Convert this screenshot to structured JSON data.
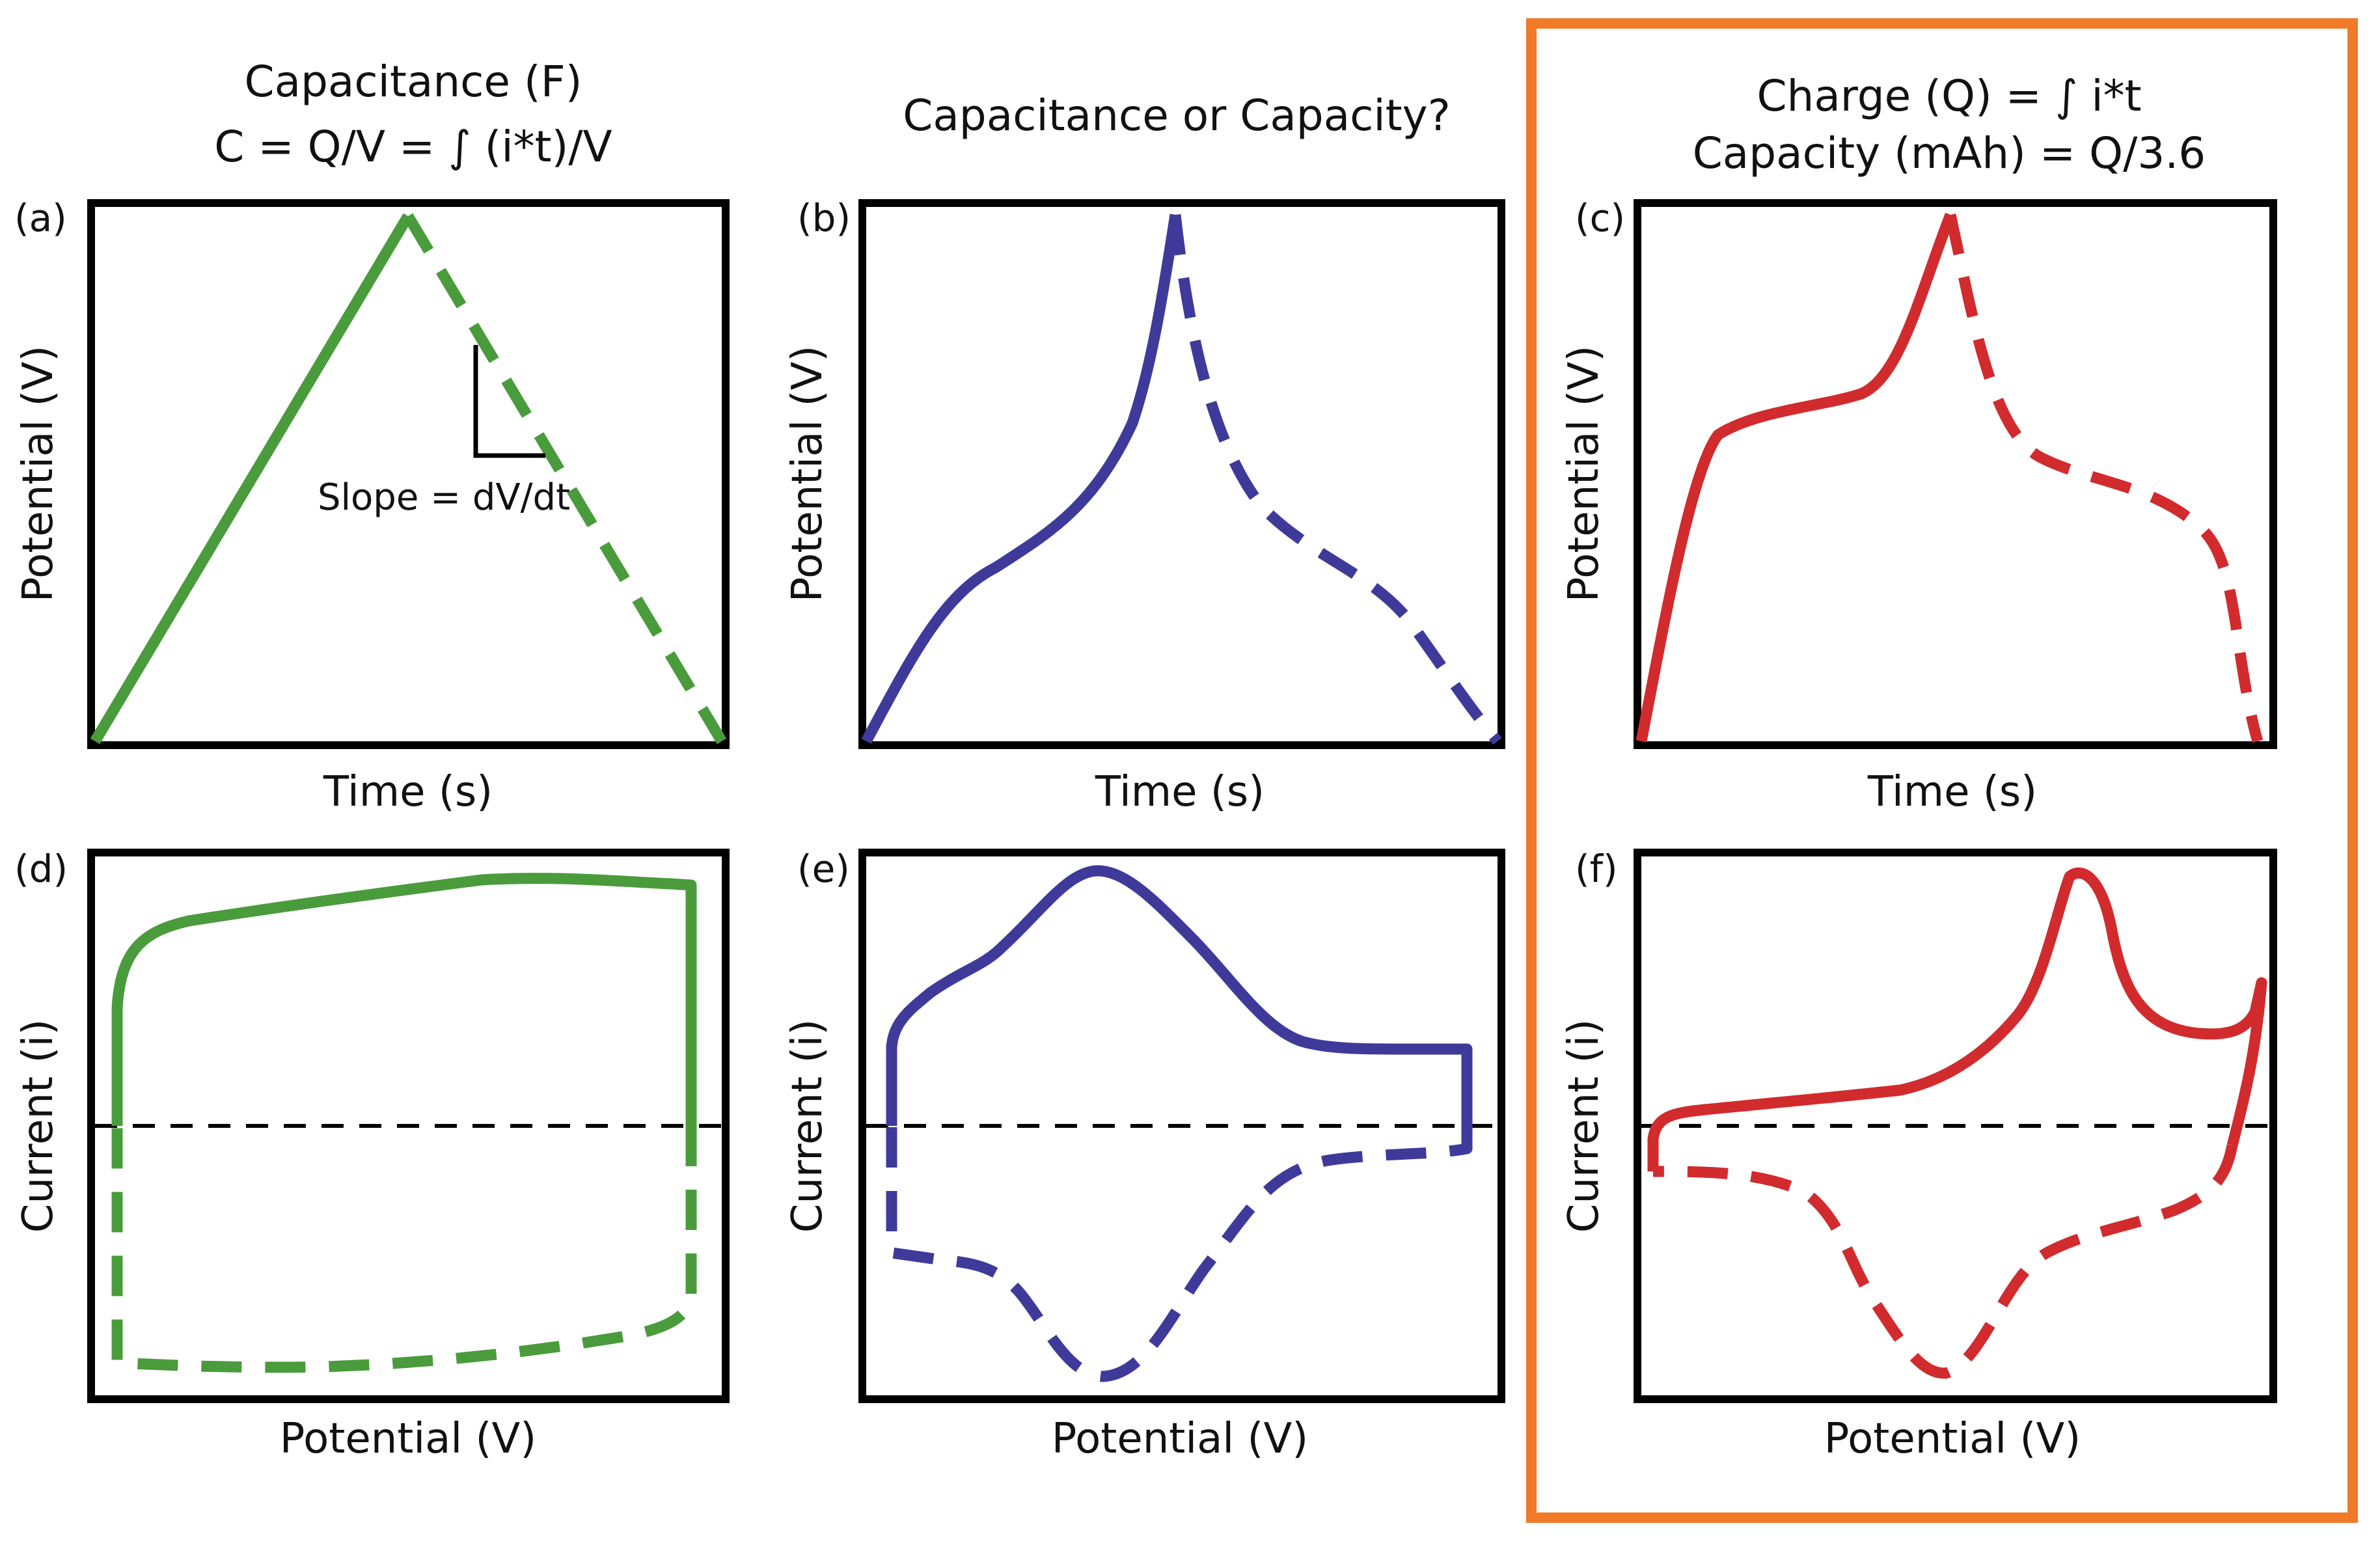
{
  "colors": {
    "green": "#4a9b3c",
    "blue": "#3f3a9a",
    "red": "#d12b2e",
    "highlight": "#f07a28"
  },
  "headers": {
    "capacitance_title": "Capacitance (F)",
    "capacitance_formula": "C = Q/V = ∫ (i*t)/V",
    "question": "Capacitance or Capacity?",
    "charge_formula": "Charge (Q) = ∫ i*t",
    "capacity_formula": "Capacity (mAh) = Q/3.6"
  },
  "slope_label": "Slope = dV/dt",
  "panels": [
    {
      "letter": "(a)",
      "xlabel": "Time (s)",
      "ylabel": "Potential (V)"
    },
    {
      "letter": "(b)",
      "xlabel": "Time (s)",
      "ylabel": "Potential (V)"
    },
    {
      "letter": "(c)",
      "xlabel": "Time (s)",
      "ylabel": "Potential (V)"
    },
    {
      "letter": "(d)",
      "xlabel": "Potential (V)",
      "ylabel": "Current (i)"
    },
    {
      "letter": "(e)",
      "xlabel": "Potential (V)",
      "ylabel": "Current (i)"
    },
    {
      "letter": "(f)",
      "xlabel": "Potential (V)",
      "ylabel": "Current (i)"
    }
  ]
}
